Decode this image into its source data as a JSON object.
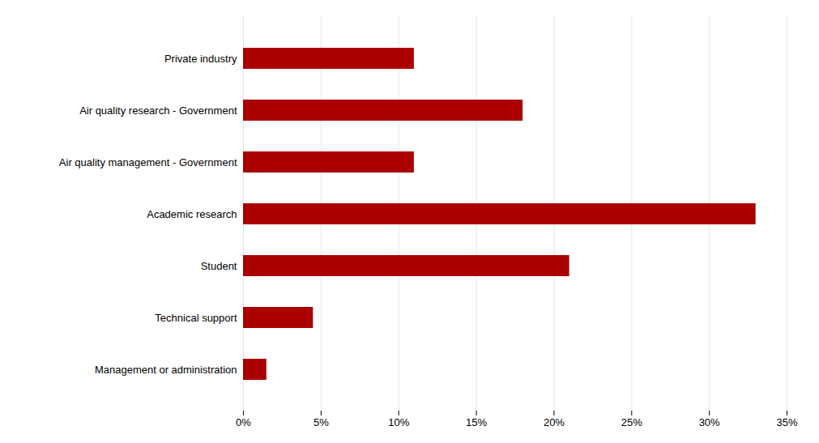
{
  "chart_data": {
    "type": "bar",
    "orientation": "horizontal",
    "categories": [
      "Private industry",
      "Air quality research - Government",
      "Air quality management - Government",
      "Academic research",
      "Student",
      "Technical support",
      "Management or administration"
    ],
    "values": [
      11,
      18,
      11,
      33,
      21,
      4.5,
      1.5
    ],
    "color": "#AA0000",
    "xlim": [
      0,
      35
    ],
    "xticks": [
      {
        "value": 0,
        "label": "0%"
      },
      {
        "value": 5,
        "label": "5%"
      },
      {
        "value": 10,
        "label": "10%"
      },
      {
        "value": 15,
        "label": "15%"
      },
      {
        "value": 20,
        "label": "20%"
      },
      {
        "value": 25,
        "label": "25%"
      },
      {
        "value": 30,
        "label": "30%"
      },
      {
        "value": 35,
        "label": "35%"
      }
    ],
    "grid": true
  }
}
